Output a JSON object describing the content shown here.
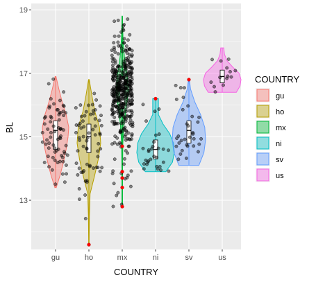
{
  "chart_data": {
    "type": "violin",
    "xlabel": "COUNTRY",
    "ylabel": "BL",
    "categories": [
      "gu",
      "ho",
      "mx",
      "ni",
      "sv",
      "us"
    ],
    "y_ticks": [
      13,
      15,
      17,
      19
    ],
    "ylim": [
      11.45,
      19.2
    ],
    "grid": true,
    "legend": {
      "title": "COUNTRY",
      "position": "right",
      "entries": [
        "gu",
        "ho",
        "mx",
        "ni",
        "sv",
        "us"
      ]
    },
    "colors": {
      "gu": "#F8766D",
      "ho": "#B79F00",
      "mx": "#00BA38",
      "ni": "#00BFC4",
      "sv": "#619CFF",
      "us": "#F564E3",
      "outlier": "#FF0000",
      "panel_background": "#EBEBEB",
      "grid": "#FFFFFF"
    },
    "groups": [
      {
        "name": "gu",
        "min": 13.4,
        "max": 16.9,
        "q1": 14.6,
        "median": 15.2,
        "q3": 15.5,
        "profile": [
          [
            13.4,
            0.05
          ],
          [
            13.8,
            0.35
          ],
          [
            14.2,
            0.6
          ],
          [
            14.6,
            0.8
          ],
          [
            15.0,
            0.95
          ],
          [
            15.3,
            1.0
          ],
          [
            15.7,
            0.8
          ],
          [
            16.1,
            0.5
          ],
          [
            16.5,
            0.25
          ],
          [
            16.9,
            0.03
          ]
        ],
        "outliers": [],
        "n_points": 70
      },
      {
        "name": "ho",
        "min": 11.6,
        "max": 16.8,
        "q1": 14.5,
        "median": 15.0,
        "q3": 15.4,
        "profile": [
          [
            11.6,
            0.02
          ],
          [
            12.5,
            0.04
          ],
          [
            13.2,
            0.1
          ],
          [
            13.8,
            0.5
          ],
          [
            14.3,
            0.8
          ],
          [
            14.8,
            1.0
          ],
          [
            15.3,
            0.9
          ],
          [
            15.8,
            0.5
          ],
          [
            16.3,
            0.25
          ],
          [
            16.8,
            0.03
          ]
        ],
        "outliers": [
          11.6
        ],
        "n_points": 65
      },
      {
        "name": "mx",
        "min": 12.8,
        "max": 18.8,
        "q1": 15.9,
        "median": 16.5,
        "q3": 16.9,
        "profile": [
          [
            12.8,
            0.02
          ],
          [
            13.8,
            0.05
          ],
          [
            14.8,
            0.1
          ],
          [
            15.4,
            0.3
          ],
          [
            15.9,
            0.6
          ],
          [
            16.4,
            1.0
          ],
          [
            16.9,
            0.8
          ],
          [
            17.5,
            0.35
          ],
          [
            18.1,
            0.12
          ],
          [
            18.8,
            0.02
          ]
        ],
        "outliers": [
          12.8,
          13.4,
          13.7,
          13.9,
          14.7
        ],
        "n_points": 400
      },
      {
        "name": "ni",
        "min": 13.9,
        "max": 16.2,
        "q1": 14.3,
        "median": 14.6,
        "q3": 14.9,
        "profile": [
          [
            13.9,
            0.55
          ],
          [
            14.2,
            0.9
          ],
          [
            14.5,
            1.0
          ],
          [
            14.8,
            0.95
          ],
          [
            15.1,
            0.75
          ],
          [
            15.4,
            0.4
          ],
          [
            15.7,
            0.15
          ],
          [
            16.0,
            0.15
          ],
          [
            16.2,
            0.15
          ]
        ],
        "outliers": [
          16.2
        ],
        "n_points": 30
      },
      {
        "name": "sv",
        "min": 14.1,
        "max": 16.8,
        "q1": 14.8,
        "median": 15.2,
        "q3": 15.5,
        "profile": [
          [
            14.1,
            0.6
          ],
          [
            14.5,
            0.9
          ],
          [
            14.9,
            1.0
          ],
          [
            15.3,
            0.95
          ],
          [
            15.7,
            0.7
          ],
          [
            16.1,
            0.35
          ],
          [
            16.5,
            0.1
          ],
          [
            16.8,
            0.03
          ]
        ],
        "outliers": [
          16.8
        ],
        "n_points": 32
      },
      {
        "name": "us",
        "min": 16.4,
        "max": 17.8,
        "q1": 16.7,
        "median": 16.9,
        "q3": 17.1,
        "profile": [
          [
            16.4,
            0.75
          ],
          [
            16.6,
            0.95
          ],
          [
            16.8,
            1.0
          ],
          [
            17.0,
            0.9
          ],
          [
            17.2,
            0.55
          ],
          [
            17.4,
            0.25
          ],
          [
            17.6,
            0.12
          ],
          [
            17.8,
            0.08
          ]
        ],
        "outliers": [],
        "n_points": 14
      }
    ]
  }
}
